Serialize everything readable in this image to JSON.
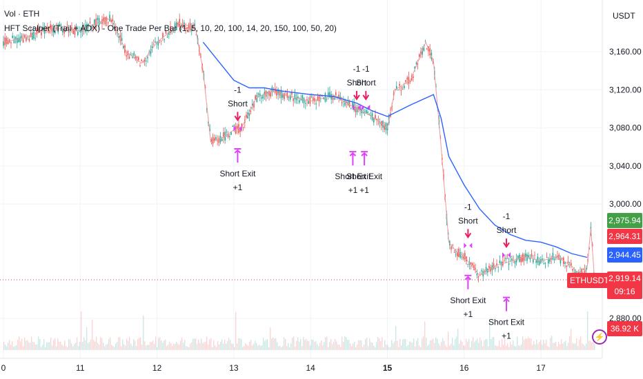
{
  "legend": {
    "line1": "Vol · ETH",
    "line2": "HFT Scalper (Trail + ADX) - One Trade Per Bar (1, 5, 10, 20, 100, 14, 20, 150, 100, 50, 20)"
  },
  "axis": {
    "unit": "USDT",
    "y_ticks": [
      "3,160.00",
      "3,120.00",
      "3,080.00",
      "3,040.00",
      "3,000.00",
      "2,880.00"
    ],
    "x_ticks": [
      "0",
      "11",
      "12",
      "13",
      "14",
      "15",
      "16",
      "17"
    ]
  },
  "badges": {
    "symbol": "ETHUSDT.P",
    "last_price": "2,919.14",
    "countdown": "09:16",
    "high": "2,975.94",
    "low": "2,964.31",
    "ma": "2,944.45",
    "volume": "36.92 K"
  },
  "colors": {
    "up": "#26a69a",
    "down": "#ef5350",
    "ma_line": "#2962ff",
    "signal": "#e040fb",
    "short_arrow": "#e91e63",
    "badge_green": "#43a047",
    "badge_red": "#f23645",
    "badge_blue": "#2962ff"
  },
  "signals": {
    "short_label": "Short",
    "short_qty": "-1",
    "exit_label": "Short Exit",
    "exit_qty": "+1"
  },
  "chart_data": {
    "type": "line",
    "title": "",
    "xlabel": "",
    "ylabel": "USDT",
    "ylim": [
      2860,
      3200
    ],
    "x_unit": "day",
    "series": [
      {
        "values": [
          [
            10.0,
            3170
          ],
          [
            10.3,
            3175
          ],
          [
            10.6,
            3185
          ],
          [
            11.0,
            3182
          ],
          [
            11.2,
            3190
          ],
          [
            11.4,
            3195
          ],
          [
            11.6,
            3160
          ],
          [
            11.8,
            3148
          ],
          [
            12.0,
            3170
          ],
          [
            12.3,
            3190
          ],
          [
            12.5,
            3185
          ],
          [
            12.6,
            3140
          ],
          [
            12.7,
            3065
          ],
          [
            12.8,
            3068
          ],
          [
            12.9,
            3072
          ],
          [
            13.0,
            3078
          ],
          [
            13.1,
            3080
          ],
          [
            13.3,
            3112
          ],
          [
            13.5,
            3118
          ],
          [
            13.8,
            3112
          ],
          [
            14.0,
            3108
          ],
          [
            14.3,
            3114
          ],
          [
            14.6,
            3100
          ],
          [
            14.8,
            3092
          ],
          [
            15.0,
            3080
          ],
          [
            15.1,
            3120
          ],
          [
            15.3,
            3130
          ],
          [
            15.5,
            3170
          ],
          [
            15.6,
            3150
          ],
          [
            15.7,
            3060
          ],
          [
            15.8,
            2960
          ],
          [
            15.9,
            2950
          ],
          [
            16.0,
            2945
          ],
          [
            16.1,
            2935
          ],
          [
            16.2,
            2925
          ],
          [
            16.4,
            2935
          ],
          [
            16.6,
            2940
          ],
          [
            16.8,
            2945
          ],
          [
            17.0,
            2940
          ],
          [
            17.2,
            2945
          ],
          [
            17.4,
            2935
          ],
          [
            17.5,
            2925
          ],
          [
            17.6,
            2932
          ],
          [
            17.65,
            2975
          ],
          [
            17.7,
            2919
          ]
        ]
      },
      {
        "values": [
          [
            12.6,
            3170
          ],
          [
            12.8,
            3150
          ],
          [
            13.0,
            3130
          ],
          [
            13.2,
            3122
          ],
          [
            13.4,
            3122
          ],
          [
            13.6,
            3119
          ],
          [
            13.8,
            3117
          ],
          [
            14.0,
            3115
          ],
          [
            14.3,
            3113
          ],
          [
            14.6,
            3106
          ],
          [
            14.8,
            3098
          ],
          [
            15.0,
            3092
          ],
          [
            15.3,
            3104
          ],
          [
            15.6,
            3115
          ],
          [
            15.7,
            3090
          ],
          [
            15.8,
            3050
          ],
          [
            16.0,
            3020
          ],
          [
            16.2,
            2995
          ],
          [
            16.4,
            2978
          ],
          [
            16.6,
            2968
          ],
          [
            16.8,
            2962
          ],
          [
            17.0,
            2960
          ],
          [
            17.2,
            2955
          ],
          [
            17.4,
            2948
          ],
          [
            17.6,
            2944
          ]
        ]
      }
    ],
    "signals": [
      {
        "type": "short",
        "x": 13.05,
        "y": 3078
      },
      {
        "type": "short",
        "x": 14.6,
        "y": 3100
      },
      {
        "type": "short",
        "x": 14.72,
        "y": 3100
      },
      {
        "type": "short",
        "x": 16.05,
        "y": 2955
      },
      {
        "type": "short",
        "x": 16.55,
        "y": 2945
      },
      {
        "type": "exit",
        "x": 13.05,
        "y": 3058
      },
      {
        "type": "exit",
        "x": 14.55,
        "y": 3055
      },
      {
        "type": "exit",
        "x": 14.7,
        "y": 3055
      },
      {
        "type": "exit",
        "x": 16.05,
        "y": 2925
      },
      {
        "type": "exit",
        "x": 16.55,
        "y": 2902
      }
    ]
  }
}
